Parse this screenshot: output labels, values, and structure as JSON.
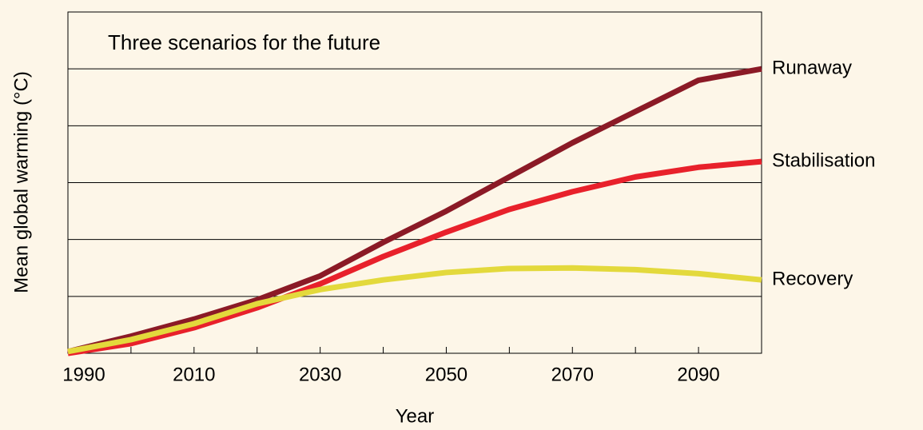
{
  "chart_data": {
    "type": "line",
    "title": "Three scenarios for the future",
    "x_label": "Year",
    "y_label": "Mean global warming (°C)",
    "x": [
      1990,
      2000,
      2010,
      2020,
      2030,
      2040,
      2050,
      2060,
      2070,
      2080,
      2090,
      2100
    ],
    "xlim": [
      1990,
      2100
    ],
    "xticks": [
      1990,
      2010,
      2030,
      2050,
      2070,
      2090
    ],
    "x_minor_ticks": [
      2000,
      2020,
      2040,
      2060,
      2080
    ],
    "ylim": [
      0,
      6
    ],
    "y_grid_lines": [
      1,
      2,
      3,
      4,
      5
    ],
    "series": [
      {
        "name": "Runaway",
        "color": "#8b1a26",
        "values": [
          0.03,
          0.3,
          0.6,
          0.94,
          1.36,
          1.95,
          2.5,
          3.1,
          3.7,
          4.25,
          4.8,
          5.0
        ]
      },
      {
        "name": "Stabilisation",
        "color": "#e8212b",
        "values": [
          0,
          0.17,
          0.45,
          0.8,
          1.22,
          1.7,
          2.13,
          2.53,
          2.84,
          3.1,
          3.27,
          3.37
        ]
      },
      {
        "name": "Recovery",
        "color": "#e3d93c",
        "values": [
          0.03,
          0.24,
          0.52,
          0.87,
          1.12,
          1.29,
          1.42,
          1.49,
          1.5,
          1.47,
          1.4,
          1.29
        ]
      }
    ]
  }
}
